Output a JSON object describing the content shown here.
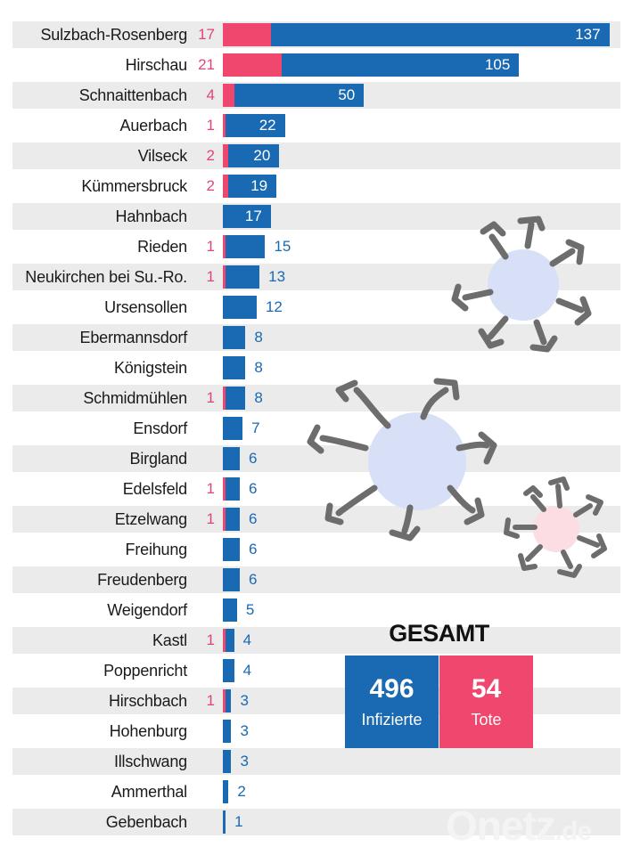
{
  "chart_data": {
    "type": "bar",
    "orientation": "horizontal",
    "stacked": true,
    "title": "",
    "xlabel": "",
    "ylabel": "",
    "categories": [
      "Sulzbach-Rosenberg",
      "Hirschau",
      "Schnaittenbach",
      "Auerbach",
      "Vilseck",
      "Kümmersbruck",
      "Hahnbach",
      "Rieden",
      "Neukirchen bei Su.-Ro.",
      "Ursensollen",
      "Ebermannsdorf",
      "Königstein",
      "Schmidmühlen",
      "Ensdorf",
      "Birgland",
      "Edelsfeld",
      "Etzelwang",
      "Freihung",
      "Freudenberg",
      "Weigendorf",
      "Kastl",
      "Poppenricht",
      "Hirschbach",
      "Hohenburg",
      "Illschwang",
      "Ammerthal",
      "Gebenbach"
    ],
    "series": [
      {
        "name": "Infizierte",
        "color": "#1a69b3",
        "values": [
          137,
          105,
          50,
          22,
          20,
          19,
          17,
          15,
          13,
          12,
          8,
          8,
          8,
          7,
          6,
          6,
          6,
          6,
          6,
          5,
          4,
          4,
          3,
          3,
          3,
          2,
          1
        ]
      },
      {
        "name": "Tote",
        "color": "#f0476f",
        "values": [
          17,
          21,
          4,
          1,
          2,
          2,
          null,
          1,
          1,
          null,
          null,
          null,
          1,
          null,
          null,
          1,
          1,
          null,
          null,
          null,
          1,
          null,
          1,
          null,
          null,
          null,
          null
        ]
      }
    ],
    "xlim": [
      0,
      140
    ],
    "grid": false,
    "legend": "none"
  },
  "summary": {
    "title": "GESAMT",
    "infected": {
      "value": "496",
      "label": "Infizierte",
      "color": "#1a69b3"
    },
    "deaths": {
      "value": "54",
      "label": "Tote",
      "color": "#f0476f"
    }
  },
  "watermark": {
    "brand": "Onetz",
    "tld": ".de"
  }
}
